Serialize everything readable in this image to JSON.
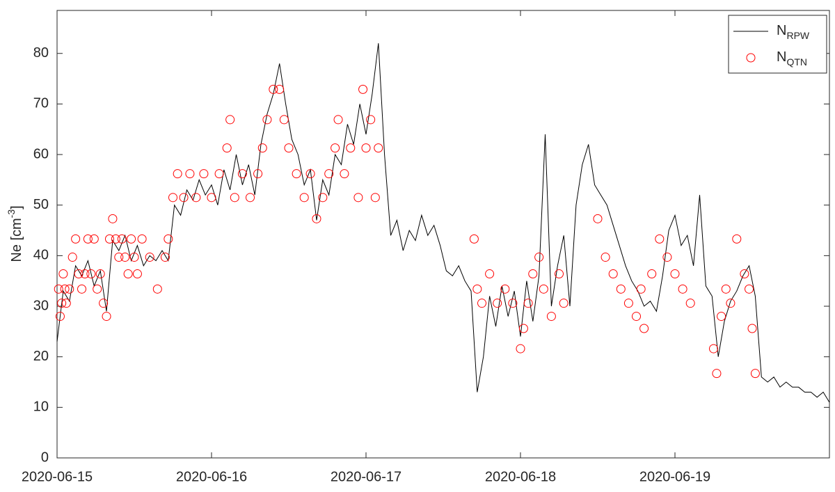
{
  "chart_data": {
    "type": "line_scatter",
    "ylabel": "Ne [cm-3]",
    "xlim": [
      0,
      5
    ],
    "ylim": [
      0,
      88.5
    ],
    "xticks": [
      {
        "value": 0,
        "label": "2020-06-15"
      },
      {
        "value": 1,
        "label": "2020-06-16"
      },
      {
        "value": 2,
        "label": "2020-06-17"
      },
      {
        "value": 3,
        "label": "2020-06-18"
      },
      {
        "value": 4,
        "label": "2020-06-19"
      }
    ],
    "yticks": [
      0,
      10,
      20,
      30,
      40,
      50,
      60,
      70,
      80
    ],
    "legend": "upper right",
    "series": [
      {
        "name": "NRPW",
        "color": "#000000",
        "kind": "line",
        "x": [
          0,
          0.04,
          0.08,
          0.12,
          0.16,
          0.2,
          0.24,
          0.28,
          0.32,
          0.36,
          0.4,
          0.44,
          0.48,
          0.52,
          0.56,
          0.6,
          0.64,
          0.68,
          0.72,
          0.76,
          0.8,
          0.84,
          0.88,
          0.92,
          0.96,
          1,
          1.04,
          1.08,
          1.12,
          1.16,
          1.2,
          1.24,
          1.28,
          1.32,
          1.36,
          1.4,
          1.44,
          1.48,
          1.52,
          1.56,
          1.6,
          1.64,
          1.68,
          1.72,
          1.76,
          1.8,
          1.84,
          1.88,
          1.92,
          1.96,
          2,
          2.04,
          2.08,
          2.12,
          2.16,
          2.2,
          2.24,
          2.28,
          2.32,
          2.36,
          2.4,
          2.44,
          2.48,
          2.52,
          2.56,
          2.6,
          2.64,
          2.68,
          2.72,
          2.76,
          2.8,
          2.84,
          2.88,
          2.92,
          2.96,
          3,
          3.04,
          3.08,
          3.12,
          3.16,
          3.2,
          3.24,
          3.28,
          3.32,
          3.36,
          3.4,
          3.44,
          3.48,
          3.52,
          3.56,
          3.6,
          3.64,
          3.68,
          3.72,
          3.76,
          3.8,
          3.84,
          3.88,
          3.92,
          3.96,
          4,
          4.04,
          4.08,
          4.12,
          4.16,
          4.2,
          4.24,
          4.28,
          4.32,
          4.36,
          4.4,
          4.44,
          4.48,
          4.52,
          4.56,
          4.6,
          4.64,
          4.68,
          4.72,
          4.76,
          4.8,
          4.84,
          4.88,
          4.92,
          4.96,
          5
        ],
        "values": [
          23,
          33,
          31,
          38,
          36,
          39,
          34,
          37,
          29,
          43,
          41,
          44,
          39,
          42,
          38,
          40,
          39,
          41,
          39,
          50,
          48,
          53,
          51,
          55,
          52,
          54,
          50,
          57,
          53,
          60,
          54,
          58,
          52,
          62,
          68,
          72,
          78,
          70,
          63,
          60,
          54,
          57,
          47,
          55,
          52,
          60,
          58,
          66,
          62,
          70,
          64,
          72,
          82,
          60,
          44,
          47,
          41,
          45,
          43,
          48,
          44,
          46,
          42,
          37,
          36,
          38,
          35,
          33,
          13,
          20,
          32,
          26,
          34,
          28,
          33,
          24,
          35,
          27,
          36,
          64,
          30,
          38,
          44,
          30,
          50,
          58,
          62,
          54,
          52,
          50,
          46,
          42,
          38,
          35,
          33,
          30,
          31,
          29,
          36,
          45,
          48,
          42,
          44,
          38,
          52,
          34,
          32,
          20,
          27,
          31,
          33,
          36,
          38,
          32,
          16,
          15,
          16,
          14,
          15,
          14,
          14,
          13,
          13,
          12,
          13,
          11
        ]
      },
      {
        "name": "NQTN",
        "color": "#ff0000",
        "kind": "scatter",
        "x": [
          0.01,
          0.02,
          0.03,
          0.04,
          0.05,
          0.06,
          0.08,
          0.1,
          0.12,
          0.14,
          0.16,
          0.18,
          0.2,
          0.22,
          0.24,
          0.26,
          0.28,
          0.3,
          0.32,
          0.34,
          0.36,
          0.38,
          0.4,
          0.42,
          0.44,
          0.46,
          0.48,
          0.5,
          0.52,
          0.55,
          0.6,
          0.65,
          0.7,
          0.72,
          0.75,
          0.78,
          0.82,
          0.86,
          0.9,
          0.95,
          1,
          1.05,
          1.1,
          1.12,
          1.15,
          1.2,
          1.25,
          1.3,
          1.33,
          1.36,
          1.4,
          1.44,
          1.47,
          1.5,
          1.55,
          1.6,
          1.64,
          1.68,
          1.72,
          1.76,
          1.8,
          1.82,
          1.86,
          1.9,
          1.95,
          1.98,
          2,
          2.03,
          2.06,
          2.08,
          2.7,
          2.72,
          2.75,
          2.8,
          2.85,
          2.9,
          2.95,
          3,
          3.02,
          3.05,
          3.08,
          3.12,
          3.15,
          3.2,
          3.25,
          3.28,
          3.5,
          3.55,
          3.6,
          3.65,
          3.7,
          3.75,
          3.78,
          3.8,
          3.85,
          3.9,
          3.95,
          4,
          4.05,
          4.1,
          4.25,
          4.27,
          4.3,
          4.33,
          4.36,
          4.4,
          4.45,
          4.48,
          4.5,
          4.52
        ],
        "values": [
          33.4,
          28,
          30.6,
          36.4,
          33.4,
          30.6,
          33.4,
          39.7,
          43.3,
          36.4,
          33.4,
          36.4,
          43.3,
          36.4,
          43.3,
          33.4,
          36.4,
          30.6,
          28,
          43.3,
          47.3,
          43.3,
          39.7,
          43.3,
          39.7,
          36.4,
          43.3,
          39.7,
          36.4,
          43.3,
          39.7,
          33.4,
          39.7,
          43.3,
          51.5,
          56.2,
          51.5,
          56.2,
          51.5,
          56.2,
          51.5,
          56.2,
          61.3,
          66.9,
          51.5,
          56.2,
          51.5,
          56.2,
          61.3,
          66.9,
          72.9,
          72.9,
          66.9,
          61.3,
          56.2,
          51.5,
          56.2,
          47.3,
          51.5,
          56.2,
          61.3,
          66.9,
          56.2,
          61.3,
          51.5,
          72.9,
          61.3,
          66.9,
          51.5,
          61.3,
          43.3,
          33.4,
          30.6,
          36.4,
          30.6,
          33.4,
          30.6,
          21.6,
          25.6,
          30.6,
          36.4,
          39.7,
          33.4,
          28,
          36.4,
          30.6,
          47.3,
          39.7,
          36.4,
          33.4,
          30.6,
          28,
          33.4,
          25.6,
          36.4,
          43.3,
          39.7,
          36.4,
          33.4,
          30.6,
          21.6,
          16.7,
          28,
          33.4,
          30.6,
          43.3,
          36.4,
          33.4,
          25.6,
          16.7
        ]
      }
    ]
  }
}
